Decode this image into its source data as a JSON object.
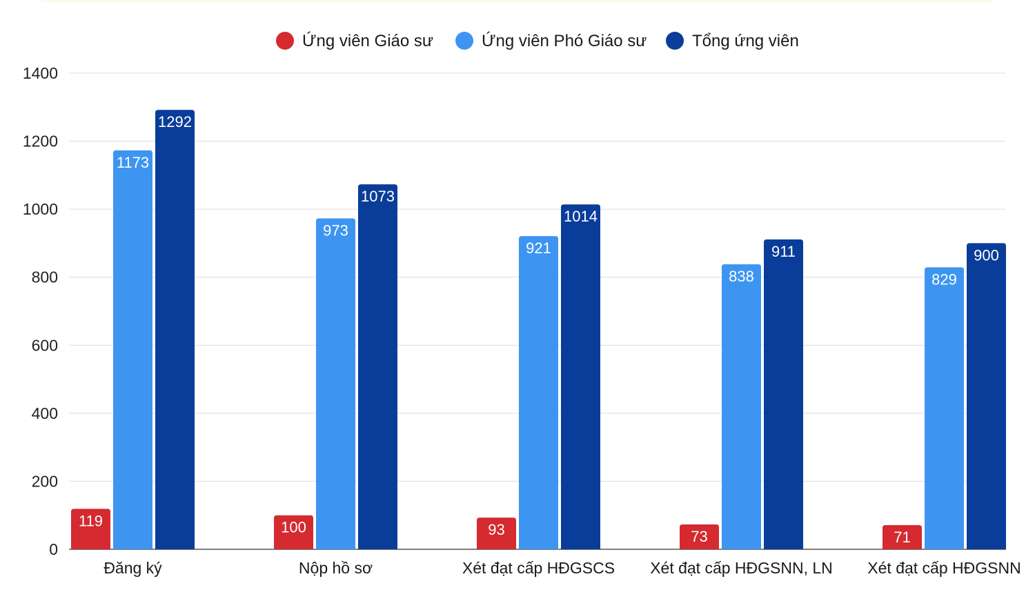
{
  "chart_data": {
    "type": "bar",
    "categories": [
      "Đăng ký",
      "Nộp hồ sơ",
      "Xét đạt cấp HĐGSCS",
      "Xét đạt cấp HĐGSNN, LN",
      "Xét đạt cấp HĐGSNN"
    ],
    "series": [
      {
        "name": "Ứng viên Giáo sư",
        "color": "#d42a30",
        "values": [
          119,
          100,
          93,
          73,
          71
        ]
      },
      {
        "name": "Ứng viên Phó Giáo sư",
        "color": "#3d95f1",
        "values": [
          1173,
          973,
          921,
          838,
          829
        ]
      },
      {
        "name": "Tổng ứng viên",
        "color": "#0a3d99",
        "values": [
          1292,
          1073,
          1014,
          911,
          900
        ]
      }
    ],
    "yticks": [
      0,
      200,
      400,
      600,
      800,
      1000,
      1200,
      1400
    ],
    "ylim": [
      0,
      1400
    ],
    "grid": true,
    "legend_position": "top"
  }
}
